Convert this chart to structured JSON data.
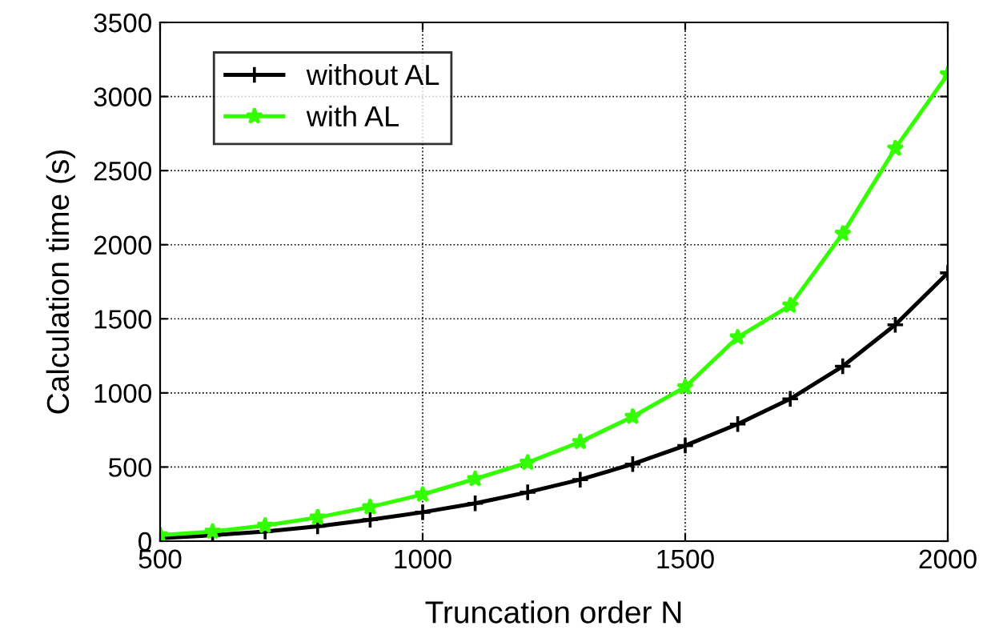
{
  "chart_data": {
    "type": "line",
    "xlabel": "Truncation order N",
    "ylabel": "Calculation time (s)",
    "x": [
      500,
      600,
      700,
      800,
      900,
      1000,
      1100,
      1200,
      1300,
      1400,
      1500,
      1600,
      1700,
      1800,
      1900,
      2000
    ],
    "series": [
      {
        "name": "without AL",
        "color": "#000000",
        "marker": "cross",
        "values": [
          20,
          40,
          65,
          100,
          145,
          195,
          255,
          330,
          415,
          520,
          645,
          790,
          960,
          1180,
          1460,
          1810
        ]
      },
      {
        "name": "with AL",
        "color": "#33ff00",
        "marker": "star",
        "values": [
          40,
          65,
          105,
          160,
          230,
          315,
          420,
          530,
          670,
          840,
          1040,
          1375,
          1590,
          2075,
          2650,
          3150
        ]
      }
    ],
    "xlim": [
      500,
      2000
    ],
    "xticks": [
      500,
      1000,
      1500,
      2000
    ],
    "ylim": [
      0,
      3500
    ],
    "yticks": [
      0,
      500,
      1000,
      1500,
      2000,
      2500,
      3000,
      3500
    ],
    "grid": true,
    "legend": "top left",
    "line_style": "solid"
  }
}
